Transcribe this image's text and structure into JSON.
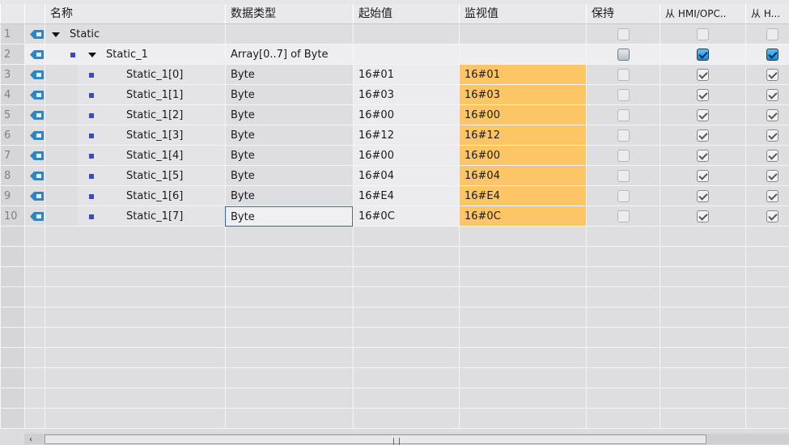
{
  "columns": {
    "name": "名称",
    "type": "数据类型",
    "start": "起始值",
    "monitor": "监视值",
    "retain": "保持",
    "hmi_opc": "从 HMI/OPC..",
    "hmi": "从 H..."
  },
  "rows": [
    {
      "num": "1",
      "name": "Static",
      "indent": 0,
      "expander": true,
      "bullet": false,
      "type": "",
      "start": "",
      "monitor": "",
      "retain": false,
      "hmi_opc": false,
      "hmi": false
    },
    {
      "num": "2",
      "name": "Static_1",
      "indent": 1,
      "expander": true,
      "bullet": true,
      "type": "Array[0..7] of Byte",
      "start": "",
      "monitor": "",
      "retain": "partial",
      "hmi_opc": "blue",
      "hmi": "blue"
    },
    {
      "num": "3",
      "name": "Static_1[0]",
      "indent": 2,
      "bullet": true,
      "type": "Byte",
      "start": "16#01",
      "monitor": "16#01",
      "retain": false,
      "hmi_opc": true,
      "hmi": true
    },
    {
      "num": "4",
      "name": "Static_1[1]",
      "indent": 2,
      "bullet": true,
      "type": "Byte",
      "start": "16#03",
      "monitor": "16#03",
      "retain": false,
      "hmi_opc": true,
      "hmi": true
    },
    {
      "num": "5",
      "name": "Static_1[2]",
      "indent": 2,
      "bullet": true,
      "type": "Byte",
      "start": "16#00",
      "monitor": "16#00",
      "retain": false,
      "hmi_opc": true,
      "hmi": true
    },
    {
      "num": "6",
      "name": "Static_1[3]",
      "indent": 2,
      "bullet": true,
      "type": "Byte",
      "start": "16#12",
      "monitor": "16#12",
      "retain": false,
      "hmi_opc": true,
      "hmi": true
    },
    {
      "num": "7",
      "name": "Static_1[4]",
      "indent": 2,
      "bullet": true,
      "type": "Byte",
      "start": "16#00",
      "monitor": "16#00",
      "retain": false,
      "hmi_opc": true,
      "hmi": true
    },
    {
      "num": "8",
      "name": "Static_1[5]",
      "indent": 2,
      "bullet": true,
      "type": "Byte",
      "start": "16#04",
      "monitor": "16#04",
      "retain": false,
      "hmi_opc": true,
      "hmi": true
    },
    {
      "num": "9",
      "name": "Static_1[6]",
      "indent": 2,
      "bullet": true,
      "type": "Byte",
      "start": "16#E4",
      "monitor": "16#E4",
      "retain": false,
      "hmi_opc": true,
      "hmi": true
    },
    {
      "num": "10",
      "name": "Static_1[7]",
      "indent": 2,
      "bullet": true,
      "type": "Byte",
      "start": "16#0C",
      "monitor": "16#0C",
      "retain": false,
      "hmi_opc": true,
      "hmi": true,
      "selected_cell": "type"
    }
  ],
  "colors": {
    "monitor_bg": "#fcc565",
    "selection": "#3a62c8",
    "icon": "#2a86c8"
  }
}
